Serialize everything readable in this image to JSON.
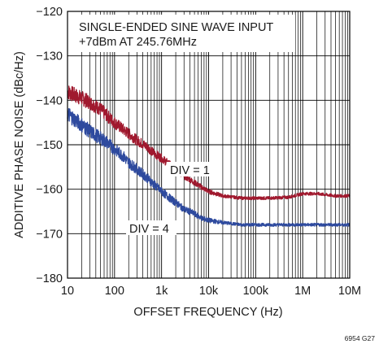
{
  "chart_data": {
    "type": "line",
    "xlabel": "OFFSET FREQUENCY (Hz)",
    "ylabel": "ADDITIVE PHASE NOISE (dBc/Hz)",
    "x_scale": "log",
    "xlim": [
      10,
      10000000
    ],
    "ylim": [
      -180,
      -120
    ],
    "x_ticks": [
      10,
      100,
      1000,
      10000,
      100000,
      1000000,
      10000000
    ],
    "x_tick_labels": [
      "10",
      "100",
      "1k",
      "10k",
      "100k",
      "1M",
      "10M"
    ],
    "y_ticks": [
      -180,
      -170,
      -160,
      -150,
      -140,
      -130,
      -120
    ],
    "y_tick_labels": [
      "−180",
      "−170",
      "−160",
      "−150",
      "−140",
      "−130",
      "−120"
    ],
    "grid": true,
    "annotations": {
      "condition_line1": "SINGLE-ENDED SINE WAVE INPUT",
      "condition_line2": "+7dBm AT 245.76MHz",
      "figure_id": "6954 G27"
    },
    "series": [
      {
        "name": "DIV = 1",
        "color": "#a0192e",
        "x": [
          10,
          15,
          20,
          30,
          50,
          70,
          100,
          150,
          200,
          300,
          500,
          700,
          1000,
          1500,
          2000,
          3000,
          5000,
          7000,
          10000,
          20000,
          50000,
          100000,
          200000,
          500000,
          1000000,
          2000000,
          5000000,
          10000000
        ],
        "y": [
          -138,
          -139,
          -139.5,
          -140.5,
          -142,
          -143.5,
          -145,
          -146.5,
          -147.5,
          -149,
          -150.5,
          -152,
          -153,
          -154.5,
          -155.5,
          -157,
          -158.5,
          -159.5,
          -160.5,
          -161.5,
          -162,
          -162,
          -162,
          -161.8,
          -161,
          -161,
          -161.5,
          -161.5
        ]
      },
      {
        "name": "DIV = 4",
        "color": "#2e4a9e",
        "x": [
          10,
          15,
          20,
          30,
          50,
          70,
          100,
          150,
          200,
          300,
          500,
          700,
          1000,
          1500,
          2000,
          3000,
          5000,
          7000,
          10000,
          20000,
          50000,
          100000,
          200000,
          500000,
          1000000,
          2000000,
          5000000,
          10000000
        ],
        "y": [
          -143,
          -144.5,
          -145.5,
          -147,
          -148.5,
          -149.5,
          -151,
          -152.5,
          -154,
          -155.5,
          -157.5,
          -159,
          -160.5,
          -162,
          -163,
          -164.5,
          -165.5,
          -166.5,
          -167,
          -167.5,
          -168,
          -168,
          -168,
          -168,
          -168,
          -168,
          -168,
          -168
        ]
      }
    ],
    "series_labels": [
      "DIV = 1",
      "DIV = 4"
    ]
  }
}
